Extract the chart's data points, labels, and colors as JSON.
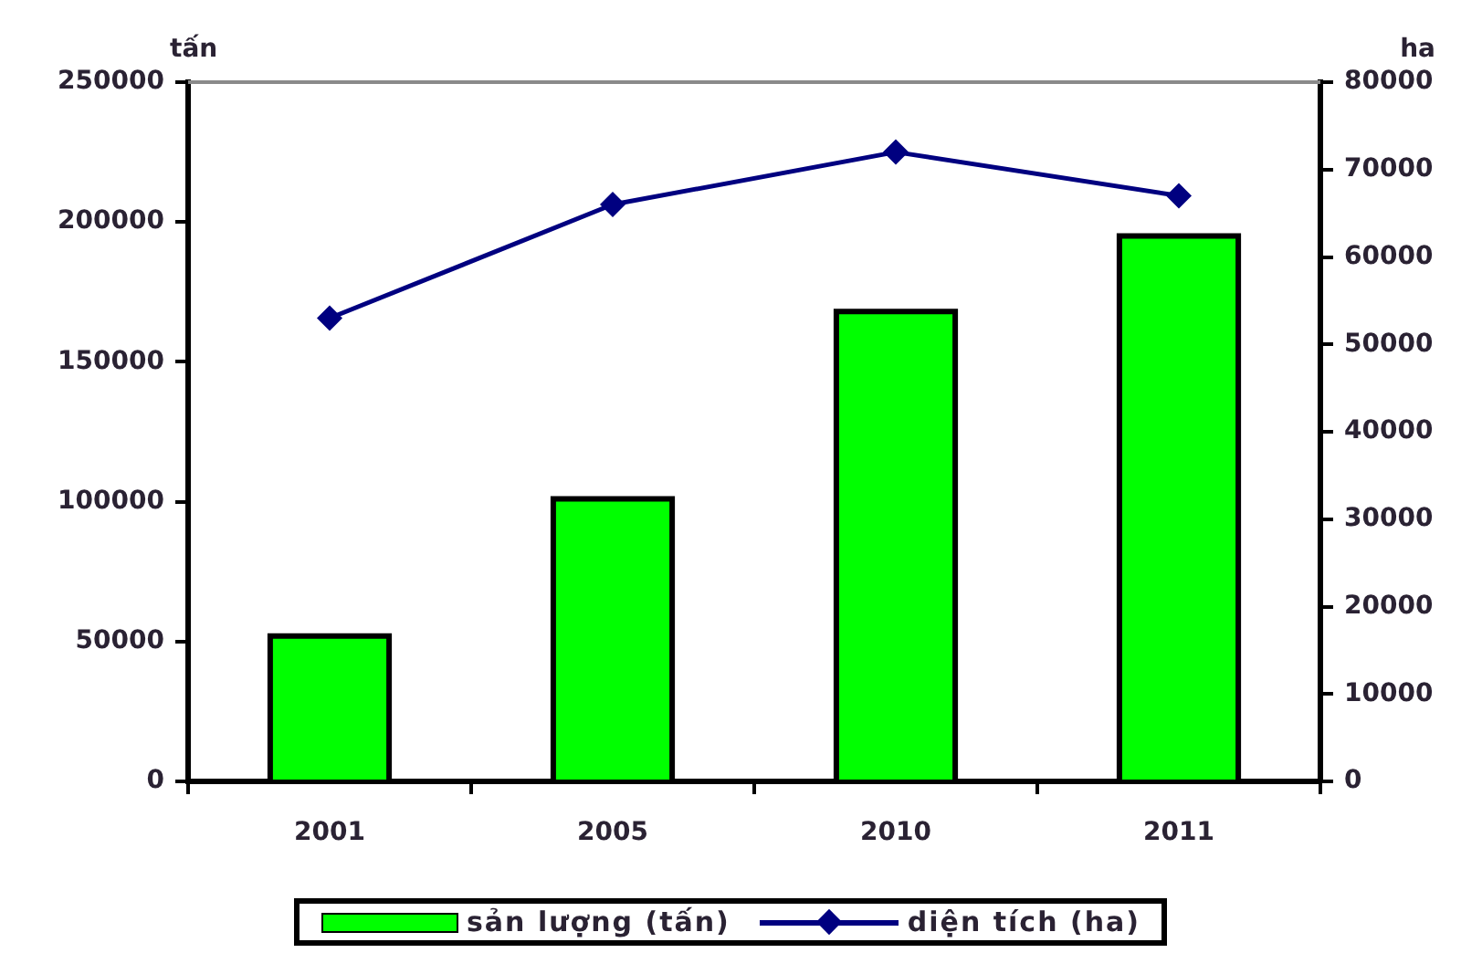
{
  "chart_data": {
    "type": "bar",
    "categories": [
      "2001",
      "2005",
      "2010",
      "2011"
    ],
    "ylabel": "tấn",
    "y2label": "ha",
    "series": [
      {
        "name": "sản lượng (tấn)",
        "type": "bar",
        "color": "#00ff00",
        "values": [
          52000,
          101000,
          168000,
          195000
        ]
      },
      {
        "name": "diện tích (ha)",
        "type": "line",
        "axis": "y2",
        "color": "#000080",
        "values": [
          53000,
          66000,
          72000,
          67000
        ]
      }
    ],
    "ylim": [
      0,
      250000
    ],
    "yticks": [
      0,
      50000,
      100000,
      150000,
      200000,
      250000
    ],
    "y2lim": [
      0,
      80000
    ],
    "y2ticks": [
      0,
      10000,
      20000,
      30000,
      40000,
      50000,
      60000,
      70000,
      80000
    ],
    "marker": "diamond",
    "legend": "bottom",
    "grid": false
  }
}
